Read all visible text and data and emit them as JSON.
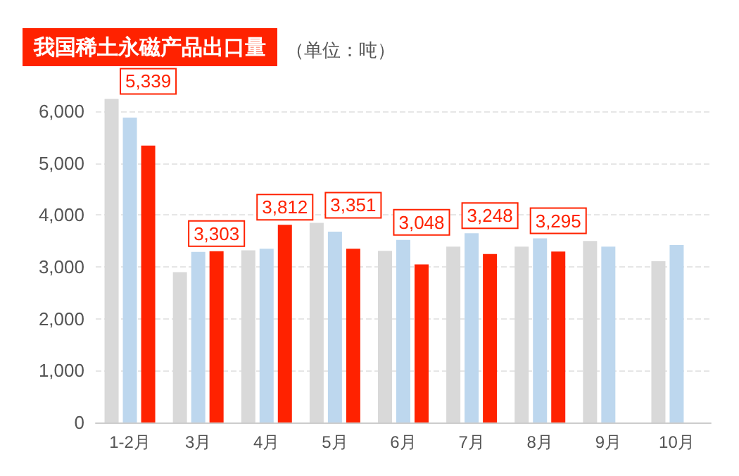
{
  "chart_data": {
    "type": "bar",
    "title": "我国稀土永磁产品出口量",
    "subtitle": "（单位：吨）",
    "categories": [
      "1-2月",
      "3月",
      "4月",
      "5月",
      "6月",
      "7月",
      "8月",
      "9月",
      "10月"
    ],
    "series": [
      {
        "color": "#d9d9d9",
        "values": [
          6240,
          2900,
          3320,
          3850,
          3310,
          3390,
          3390,
          3500,
          3110
        ]
      },
      {
        "color": "#bdd7ee",
        "values": [
          5880,
          3290,
          3350,
          3680,
          3520,
          3650,
          3550,
          3390,
          3420
        ]
      },
      {
        "color": "#ff2200",
        "values": [
          5339,
          3303,
          3812,
          3351,
          3048,
          3248,
          3295,
          null,
          null
        ],
        "value_labels": [
          "5,339",
          "3,303",
          "3,812",
          "3,351",
          "3,048",
          "3,248",
          "3,295",
          null,
          null
        ]
      }
    ],
    "ylim": [
      0,
      6300
    ],
    "yticks": [
      0,
      {
        "value": 1000,
        "label": "1,000"
      },
      {
        "value": 2000,
        "label": "2,000"
      },
      {
        "value": 3000,
        "label": "3,000"
      },
      {
        "value": 4000,
        "label": "4,000"
      },
      {
        "value": 5000,
        "label": "5,000"
      },
      {
        "value": 6000,
        "label": "6,000"
      }
    ],
    "grid": "y"
  }
}
